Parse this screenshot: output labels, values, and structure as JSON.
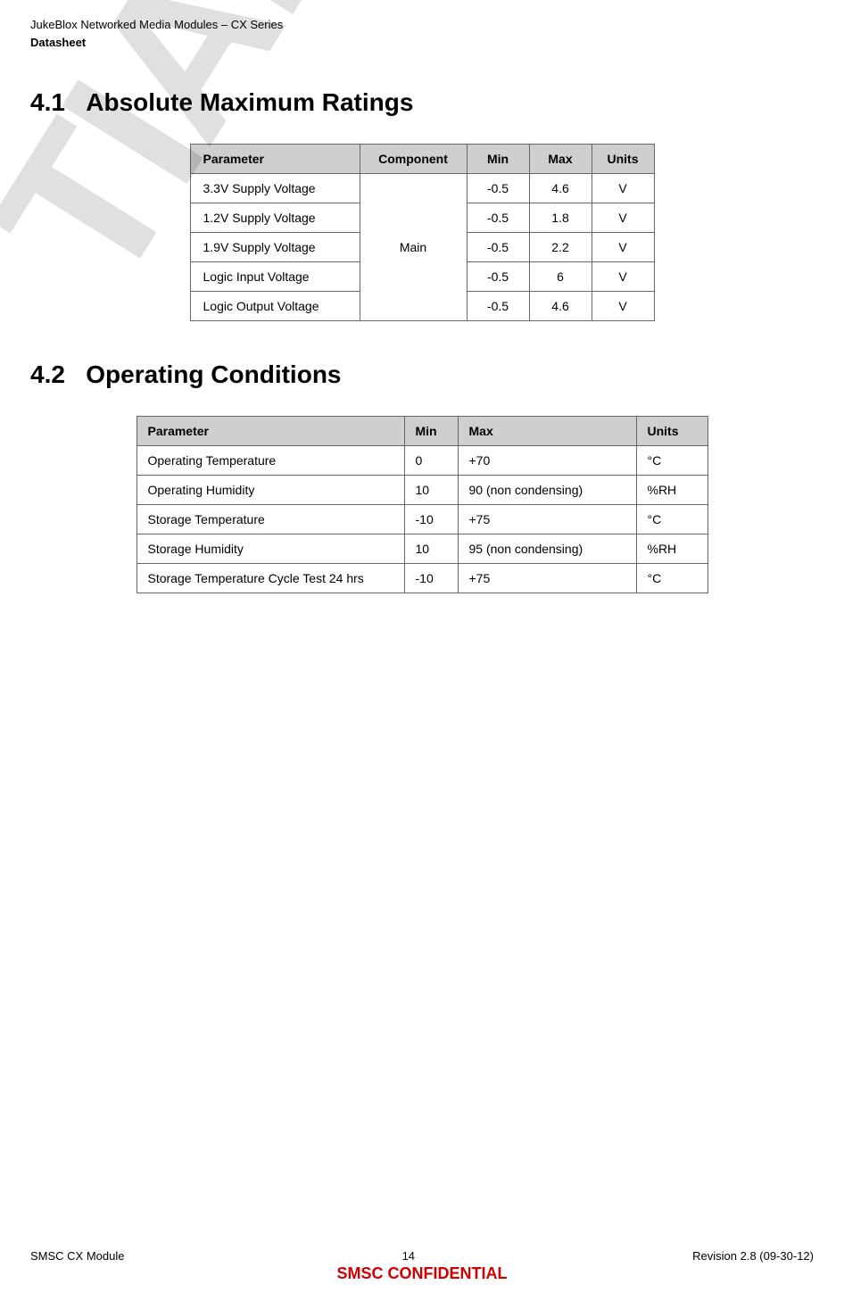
{
  "header": {
    "line1": "JukeBlox Networked Media Modules – CX Series",
    "line2": "Datasheet"
  },
  "watermark_partial": "TIAL",
  "sections": {
    "s41": {
      "number": "4.1",
      "title": "Absolute Maximum Ratings"
    },
    "s42": {
      "number": "4.2",
      "title": "Operating Conditions"
    }
  },
  "table1": {
    "headers": {
      "parameter": "Parameter",
      "component": "Component",
      "min": "Min",
      "max": "Max",
      "units": "Units"
    },
    "shared_component": "Main",
    "rows": [
      {
        "parameter": "3.3V Supply Voltage",
        "min": "-0.5",
        "max": "4.6",
        "units": "V"
      },
      {
        "parameter": "1.2V Supply Voltage",
        "min": "-0.5",
        "max": "1.8",
        "units": "V"
      },
      {
        "parameter": "1.9V Supply Voltage",
        "min": "-0.5",
        "max": "2.2",
        "units": "V"
      },
      {
        "parameter": "Logic Input Voltage",
        "min": "-0.5",
        "max": "6",
        "units": "V"
      },
      {
        "parameter": "Logic Output Voltage",
        "min": "-0.5",
        "max": "4.6",
        "units": "V"
      }
    ]
  },
  "table2": {
    "headers": {
      "parameter": "Parameter",
      "min": "Min",
      "max": "Max",
      "units": "Units"
    },
    "rows": [
      {
        "parameter": "Operating Temperature",
        "min": "0",
        "max": "+70",
        "units": "°C"
      },
      {
        "parameter": "Operating Humidity",
        "min": "10",
        "max": "90 (non condensing)",
        "units": "%RH"
      },
      {
        "parameter": "Storage Temperature",
        "min": "-10",
        "max": "+75",
        "units": "°C"
      },
      {
        "parameter": "Storage Humidity",
        "min": "10",
        "max": "95 (non condensing)",
        "units": "%RH"
      },
      {
        "parameter": "Storage Temperature Cycle Test 24 hrs",
        "min": "-10",
        "max": "+75",
        "units": "°C"
      }
    ]
  },
  "footer": {
    "left": "SMSC CX Module",
    "center_page": "14",
    "right": "Revision 2.8 (09-30-12)",
    "confidential": "SMSC CONFIDENTIAL"
  },
  "colors": {
    "header_bg": "#cfcfcf",
    "border": "#666666",
    "confidential": "#d00000",
    "watermark": "rgba(0,0,0,0.12)"
  }
}
